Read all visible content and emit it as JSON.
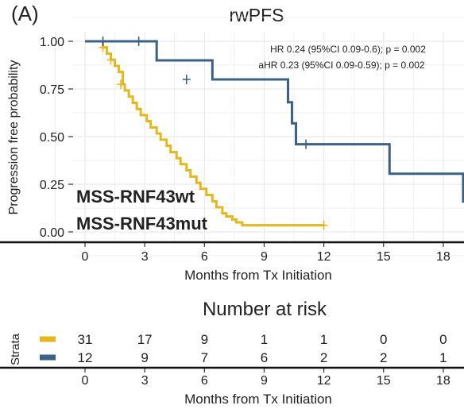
{
  "panel_label": "(A)",
  "colors": {
    "wt": "#E5B71E",
    "mut": "#3C6186",
    "wt_label": "#EBC45A",
    "mut_label": "#0B4C96",
    "grid": "#EBEBEB",
    "axis": "#111111"
  },
  "chart_data": {
    "type": "line",
    "subtype": "kaplan-meier step",
    "title": "rwPFS",
    "xlabel": "Months from Tx Initiation",
    "ylabel": "Progression free probability",
    "xlim": [
      -0.9,
      19
    ],
    "ylim": [
      -0.05,
      1.05
    ],
    "x_ticks": [
      "0",
      "3",
      "6",
      "9",
      "12",
      "15",
      "18"
    ],
    "y_ticks": [
      "0.00",
      "0.25",
      "0.50",
      "0.75",
      "1.00"
    ],
    "grid": true,
    "annotations": [
      "HR 0.24 (95%CI 0.09-0.6); p = 0.002",
      "aHR 0.23 (95%CI 0.09-0.59); p = 0.002"
    ],
    "series": [
      {
        "name": "MSS-RNF43wt",
        "color": "#E5B71E",
        "x": [
          0,
          0.8,
          0.9,
          1.1,
          1.3,
          1.5,
          1.7,
          1.9,
          2.0,
          2.2,
          2.4,
          2.6,
          2.8,
          3.1,
          3.3,
          3.6,
          3.8,
          4.1,
          4.3,
          4.6,
          4.8,
          5.1,
          5.3,
          5.6,
          5.8,
          6.1,
          6.4,
          6.6,
          6.9,
          7.1,
          7.4,
          7.6,
          7.9,
          8.2,
          12.0
        ],
        "y": [
          1.0,
          1.0,
          0.968,
          0.935,
          0.903,
          0.871,
          0.839,
          0.774,
          0.742,
          0.71,
          0.677,
          0.645,
          0.613,
          0.581,
          0.548,
          0.516,
          0.484,
          0.452,
          0.419,
          0.387,
          0.355,
          0.323,
          0.29,
          0.258,
          0.226,
          0.194,
          0.161,
          0.129,
          0.097,
          0.081,
          0.065,
          0.05,
          0.035,
          0.035,
          0.035
        ],
        "censor_x": [
          0.9,
          1.3,
          1.8,
          12.0
        ],
        "censor_y": [
          0.968,
          0.903,
          0.774,
          0.035
        ]
      },
      {
        "name": "MSS-RNF43mut",
        "color": "#3C6186",
        "x": [
          0,
          2.8,
          3.6,
          6.4,
          10.2,
          10.4,
          10.6,
          11.9,
          15.3,
          19.0
        ],
        "y": [
          1.0,
          1.0,
          0.9,
          0.8,
          0.68,
          0.57,
          0.46,
          0.46,
          0.305,
          0.153
        ],
        "censor_x": [
          0.9,
          2.7,
          5.1,
          11.1
        ],
        "censor_y": [
          1.0,
          1.0,
          0.8,
          0.46
        ]
      }
    ]
  },
  "risk_table": {
    "title": "Number at risk",
    "strata_label": "Strata",
    "xlabel": "Months from Tx Initiation",
    "x_ticks": [
      "0",
      "3",
      "6",
      "9",
      "12",
      "15",
      "18"
    ],
    "rows": [
      {
        "name": "MSS-RNF43wt",
        "color": "#E5B71E",
        "values": [
          "31",
          "17",
          "9",
          "1",
          "1",
          "0",
          "0"
        ]
      },
      {
        "name": "MSS-RNF43mut",
        "color": "#3C6186",
        "values": [
          "12",
          "9",
          "7",
          "6",
          "2",
          "2",
          "1"
        ]
      }
    ]
  }
}
